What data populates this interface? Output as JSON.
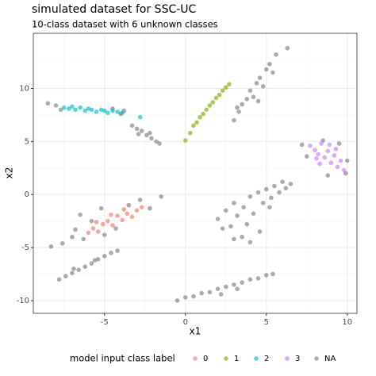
{
  "chart_data": {
    "type": "scatter",
    "title": "simulated dataset for SSC-UC",
    "subtitle": "10-class dataset with 6 unknown classes",
    "x_label": "x1",
    "y_label": "x2",
    "legend_title": "model input class label",
    "legend_position": "bottom",
    "grid": true,
    "xlim": [
      -9.4,
      10.6
    ],
    "ylim": [
      -11.2,
      15.2
    ],
    "xticks": [
      -5,
      0,
      5,
      10
    ],
    "yticks": [
      -10,
      -5,
      0,
      5,
      10
    ],
    "xminorticks": [
      -7.5,
      -2.5,
      2.5,
      7.5
    ],
    "yminorticks": [
      -7.5,
      -2.5,
      2.5,
      7.5,
      12.5
    ],
    "series": [
      {
        "name": "0",
        "color": "#F8766D",
        "x": [
          -6.0,
          -5.7,
          -5.4,
          -5.1,
          -4.8,
          -4.5,
          -4.2,
          -3.9,
          -3.6,
          -3.3,
          -3.0,
          -5.5,
          -4.6,
          -3.8,
          -2.7
        ],
        "y": [
          -3.6,
          -3.2,
          -3.5,
          -2.8,
          -2.5,
          -2.9,
          -2.0,
          -2.4,
          -1.8,
          -2.1,
          -1.5,
          -2.6,
          -1.9,
          -1.4,
          -1.2
        ]
      },
      {
        "name": "1",
        "color": "#7CAE00",
        "x": [
          0.0,
          0.3,
          0.5,
          0.7,
          0.9,
          1.1,
          1.3,
          1.5,
          1.7,
          1.9,
          2.1,
          2.3,
          2.5,
          2.7
        ],
        "y": [
          5.1,
          5.8,
          6.5,
          6.8,
          7.3,
          7.6,
          8.0,
          8.4,
          8.7,
          9.1,
          9.4,
          9.8,
          10.1,
          10.4
        ]
      },
      {
        "name": "2",
        "color": "#00BFC4",
        "x": [
          -7.5,
          -7.2,
          -7.0,
          -6.8,
          -6.5,
          -6.2,
          -6.0,
          -5.8,
          -5.5,
          -5.2,
          -5.0,
          -4.8,
          -4.5,
          -4.2,
          -3.9,
          -2.8
        ],
        "y": [
          8.2,
          8.1,
          8.3,
          8.0,
          8.2,
          7.9,
          8.1,
          8.0,
          7.8,
          8.0,
          7.9,
          7.7,
          7.9,
          7.8,
          7.7,
          7.3
        ]
      },
      {
        "name": "3",
        "color": "#C77CFF",
        "x": [
          7.7,
          8.0,
          8.2,
          8.4,
          8.6,
          8.8,
          9.0,
          9.2,
          9.4,
          9.6,
          8.3,
          8.9,
          9.3,
          8.1,
          9.8
        ],
        "y": [
          4.6,
          4.2,
          3.8,
          4.8,
          3.5,
          4.1,
          3.0,
          3.7,
          2.6,
          3.2,
          2.9,
          4.7,
          4.3,
          3.4,
          2.3
        ]
      },
      {
        "name": "NA",
        "color": "#7f7f7f",
        "x": [
          -8.5,
          -8.0,
          -7.7,
          -4.0,
          -3.8,
          -4.5,
          -3.3,
          -3.0,
          -2.7,
          -2.4,
          -2.1,
          -1.8,
          -1.6,
          -2.9,
          -2.2,
          3.0,
          3.3,
          3.5,
          3.8,
          4.0,
          4.2,
          4.4,
          4.6,
          4.8,
          5.0,
          5.2,
          5.4,
          5.6,
          6.3,
          3.2,
          4.5,
          7.2,
          7.5,
          10.0,
          9.9,
          8.5,
          9.5,
          8.8,
          2.0,
          2.5,
          2.8,
          3.0,
          3.2,
          3.5,
          3.6,
          3.8,
          4.0,
          4.2,
          4.5,
          4.6,
          4.8,
          5.0,
          5.2,
          5.5,
          5.8,
          6.0,
          6.2,
          4.0,
          3.0,
          2.3,
          5.3,
          6.5,
          -8.3,
          -7.6,
          -7.0,
          -6.8,
          -6.3,
          -5.8,
          -5.0,
          -4.3,
          -3.5,
          -2.8,
          -2.2,
          -1.5,
          -6.5,
          -5.2,
          -7.8,
          -7.4,
          -7.0,
          -6.6,
          -6.2,
          -5.8,
          -5.4,
          -5.0,
          -4.6,
          -4.2,
          -6.9,
          -5.6,
          -0.5,
          0.0,
          0.5,
          1.0,
          1.5,
          2.0,
          2.5,
          3.0,
          3.5,
          4.0,
          4.5,
          5.0,
          5.4,
          2.2,
          3.2
        ],
        "y": [
          8.6,
          8.4,
          8.0,
          7.6,
          7.9,
          8.1,
          6.5,
          6.2,
          6.0,
          5.6,
          5.3,
          5.0,
          4.8,
          5.7,
          5.8,
          7.0,
          7.8,
          8.5,
          9.0,
          9.8,
          9.2,
          10.5,
          11.0,
          10.2,
          11.8,
          12.3,
          11.5,
          13.2,
          13.8,
          8.2,
          8.8,
          4.7,
          3.6,
          3.2,
          2.0,
          5.1,
          4.8,
          1.8,
          -2.3,
          -1.5,
          -3.0,
          -0.8,
          -2.0,
          -4.0,
          -1.2,
          -2.8,
          -0.2,
          -1.8,
          0.2,
          -3.5,
          -0.8,
          0.5,
          -1.2,
          0.8,
          0.2,
          1.2,
          0.6,
          -4.5,
          -4.2,
          -3.2,
          -0.3,
          1.0,
          -4.9,
          -4.6,
          -4.0,
          -3.3,
          -4.2,
          -2.5,
          -3.8,
          -3.2,
          -1.0,
          -0.5,
          -1.3,
          -0.2,
          -1.9,
          -1.3,
          -8.0,
          -7.7,
          -7.4,
          -7.1,
          -6.8,
          -6.5,
          -6.1,
          -5.8,
          -5.5,
          -5.3,
          -7.0,
          -6.2,
          -10.0,
          -9.7,
          -9.6,
          -9.3,
          -9.2,
          -8.9,
          -8.7,
          -8.5,
          -8.3,
          -8.0,
          -7.9,
          -7.6,
          -7.5,
          -9.4,
          -8.9
        ]
      }
    ]
  }
}
